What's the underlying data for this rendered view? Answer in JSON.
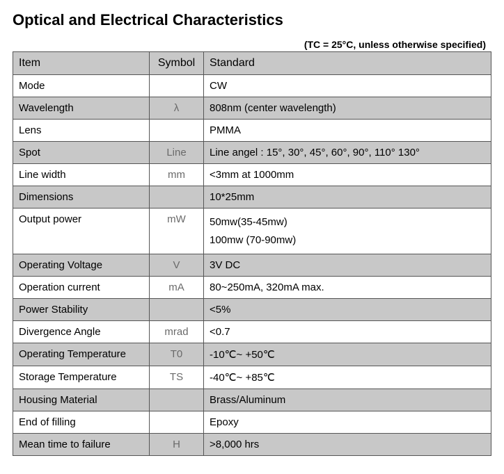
{
  "title": "Optical and Electrical Characteristics",
  "condition": "(TC = 25°C, unless otherwise specified)",
  "headers": {
    "item": "Item",
    "symbol": "Symbol",
    "standard": "Standard"
  },
  "rows": [
    {
      "shaded": false,
      "item": "Mode",
      "symbol": "",
      "standard": "CW"
    },
    {
      "shaded": true,
      "item": "Wavelength",
      "symbol": "λ",
      "standard": "808nm (center wavelength)"
    },
    {
      "shaded": false,
      "item": "Lens",
      "symbol": "",
      "standard": "PMMA"
    },
    {
      "shaded": true,
      "item": "Spot",
      "symbol": "Line",
      "standard": "Line angel : 15°, 30°, 45°, 60°, 90°, 110° 130°"
    },
    {
      "shaded": false,
      "item": "Line width",
      "symbol": "mm",
      "standard": "<3mm at 1000mm"
    },
    {
      "shaded": true,
      "item": "Dimensions",
      "symbol": "",
      "standard": "10*25mm"
    },
    {
      "shaded": false,
      "item": "Output power",
      "symbol": "mW",
      "standard": "50mw(35-45mw)\n100mw (70-90mw)"
    },
    {
      "shaded": true,
      "item": "Operating Voltage",
      "symbol": "V",
      "standard": "3V DC"
    },
    {
      "shaded": false,
      "item": "Operation current",
      "symbol": "mA",
      "standard": "80~250mA, 320mA max."
    },
    {
      "shaded": true,
      "item": "Power Stability",
      "symbol": "",
      "standard": "<5%"
    },
    {
      "shaded": false,
      "item": "Divergence Angle",
      "symbol": "mrad",
      "standard": "<0.7"
    },
    {
      "shaded": true,
      "item": "Operating Temperature",
      "symbol": "T0",
      "standard": "-10℃~ +50℃"
    },
    {
      "shaded": false,
      "item": "Storage Temperature",
      "symbol": "TS",
      "standard": "-40℃~ +85℃"
    },
    {
      "shaded": true,
      "item": "Housing Material",
      "symbol": "",
      "standard": "Brass/Aluminum"
    },
    {
      "shaded": false,
      "item": "End of filling",
      "symbol": "",
      "standard": "Epoxy"
    },
    {
      "shaded": true,
      "item": "Mean time to failure",
      "symbol": "H",
      "standard": ">8,000 hrs"
    }
  ]
}
